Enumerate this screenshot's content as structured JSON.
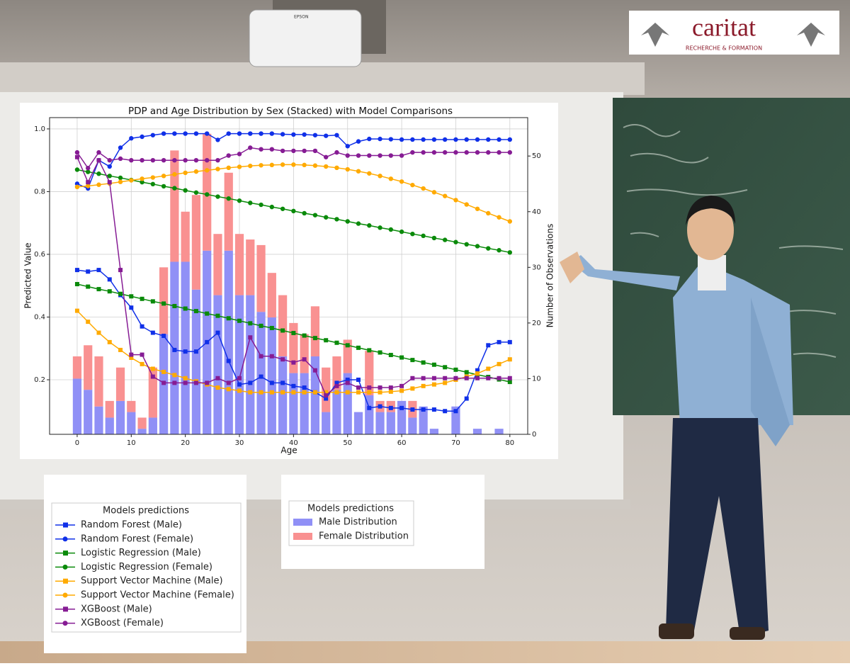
{
  "chart_data": {
    "type": "combo",
    "title": "PDP and Age Distribution by Sex (Stacked) with Model Comparisons",
    "xlabel": "Age",
    "ylabel": "Predicted Value",
    "y2label": "Number of Observations",
    "legend_title": "Models predictions",
    "x": [
      0,
      2,
      4,
      6,
      8,
      10,
      12,
      14,
      16,
      18,
      20,
      22,
      24,
      26,
      28,
      30,
      32,
      34,
      36,
      38,
      40,
      42,
      44,
      46,
      48,
      50,
      52,
      54,
      56,
      58,
      60,
      62,
      64,
      66,
      68,
      70,
      72,
      74,
      76,
      78,
      80
    ],
    "xlim": [
      -5.1,
      83.3
    ],
    "xticks": [
      0,
      10,
      20,
      30,
      40,
      50,
      60,
      70,
      80
    ],
    "ylim": [
      0.026,
      1.036
    ],
    "yticks": [
      0.2,
      0.4,
      0.6,
      0.8,
      {
        "value": 1.0,
        "label": "1.0"
      }
    ],
    "y2lim": [
      0,
      56.9
    ],
    "y2ticks": [
      0,
      10,
      20,
      30,
      40,
      50
    ],
    "grid": true,
    "series": [
      {
        "name": "Male Distribution",
        "type": "bar",
        "axis": "y2",
        "color": "#9090f6",
        "values": [
          10,
          8,
          5,
          3,
          6,
          4,
          1,
          3,
          18,
          31,
          31,
          26,
          33,
          25,
          33,
          25,
          25,
          22,
          21,
          14,
          11,
          11,
          14,
          4,
          8,
          11,
          4,
          7,
          4,
          4,
          6,
          3,
          5,
          1,
          0,
          5,
          0,
          1,
          0,
          1,
          0
        ]
      },
      {
        "name": "Female Distribution",
        "type": "bar",
        "axis": "y2",
        "color": "#f99191",
        "values": [
          4,
          8,
          9,
          3,
          6,
          2,
          2,
          9,
          12,
          20,
          9,
          17,
          21,
          11,
          14,
          11,
          10,
          12,
          8,
          11,
          9,
          7,
          9,
          8,
          6,
          6,
          0,
          8,
          2,
          2,
          0,
          3,
          0,
          0,
          0,
          0,
          0,
          0,
          0,
          0,
          0
        ]
      },
      {
        "name": "Random Forest (Male)",
        "type": "line",
        "marker": "square",
        "color": "#1030e8",
        "values": [
          0.55,
          0.545,
          0.55,
          0.52,
          0.47,
          0.43,
          0.37,
          0.35,
          0.34,
          0.295,
          0.29,
          0.29,
          0.32,
          0.35,
          0.26,
          0.185,
          0.19,
          0.21,
          0.19,
          0.19,
          0.18,
          0.175,
          0.16,
          0.14,
          0.19,
          0.2,
          0.2,
          0.11,
          0.115,
          0.11,
          0.11,
          0.105,
          0.105,
          0.105,
          0.1,
          0.1,
          0.14,
          0.23,
          0.31,
          0.32,
          0.32
        ]
      },
      {
        "name": "Random Forest (Female)",
        "type": "line",
        "marker": "circle",
        "color": "#1030e8",
        "values": [
          0.825,
          0.81,
          0.9,
          0.88,
          0.94,
          0.97,
          0.975,
          0.98,
          0.985,
          0.985,
          0.985,
          0.985,
          0.985,
          0.965,
          0.985,
          0.985,
          0.985,
          0.985,
          0.985,
          0.983,
          0.982,
          0.982,
          0.98,
          0.978,
          0.98,
          0.945,
          0.96,
          0.968,
          0.968,
          0.967,
          0.966,
          0.966,
          0.966,
          0.966,
          0.966,
          0.966,
          0.966,
          0.966,
          0.966,
          0.966,
          0.966
        ]
      },
      {
        "name": "Logistic Regression (Male)",
        "type": "line",
        "marker": "square",
        "color": "#0a8a0a",
        "values": [
          0.505,
          0.497,
          0.489,
          0.482,
          0.474,
          0.466,
          0.458,
          0.45,
          0.443,
          0.435,
          0.427,
          0.419,
          0.411,
          0.404,
          0.396,
          0.388,
          0.38,
          0.372,
          0.365,
          0.357,
          0.349,
          0.341,
          0.333,
          0.326,
          0.318,
          0.31,
          0.302,
          0.294,
          0.287,
          0.279,
          0.271,
          0.263,
          0.255,
          0.248,
          0.24,
          0.232,
          0.224,
          0.216,
          0.209,
          0.201,
          0.193
        ]
      },
      {
        "name": "Logistic Regression (Female)",
        "type": "line",
        "marker": "circle",
        "color": "#0a8a0a",
        "values": [
          0.87,
          0.863,
          0.857,
          0.85,
          0.844,
          0.837,
          0.83,
          0.824,
          0.817,
          0.811,
          0.804,
          0.797,
          0.791,
          0.784,
          0.778,
          0.771,
          0.764,
          0.758,
          0.751,
          0.745,
          0.738,
          0.731,
          0.725,
          0.718,
          0.712,
          0.705,
          0.698,
          0.692,
          0.685,
          0.679,
          0.672,
          0.665,
          0.659,
          0.652,
          0.646,
          0.639,
          0.632,
          0.626,
          0.619,
          0.613,
          0.606
        ]
      },
      {
        "name": "Support Vector Machine (Male)",
        "type": "line",
        "marker": "square",
        "color": "#ffaa00",
        "values": [
          0.42,
          0.385,
          0.35,
          0.32,
          0.295,
          0.27,
          0.25,
          0.235,
          0.225,
          0.215,
          0.205,
          0.195,
          0.185,
          0.175,
          0.17,
          0.165,
          0.16,
          0.16,
          0.16,
          0.16,
          0.16,
          0.16,
          0.16,
          0.16,
          0.16,
          0.16,
          0.16,
          0.16,
          0.16,
          0.162,
          0.165,
          0.172,
          0.18,
          0.185,
          0.19,
          0.2,
          0.21,
          0.22,
          0.235,
          0.25,
          0.265
        ]
      },
      {
        "name": "Support Vector Machine (Female)",
        "type": "line",
        "marker": "circle",
        "color": "#ffaa00",
        "values": [
          0.815,
          0.818,
          0.822,
          0.826,
          0.831,
          0.836,
          0.841,
          0.845,
          0.85,
          0.855,
          0.86,
          0.864,
          0.868,
          0.872,
          0.876,
          0.879,
          0.882,
          0.884,
          0.885,
          0.886,
          0.886,
          0.885,
          0.883,
          0.88,
          0.876,
          0.871,
          0.865,
          0.858,
          0.85,
          0.841,
          0.832,
          0.821,
          0.81,
          0.798,
          0.786,
          0.773,
          0.759,
          0.745,
          0.731,
          0.718,
          0.705
        ]
      },
      {
        "name": "XGBoost (Male)",
        "type": "line",
        "marker": "square",
        "color": "#861c94",
        "values": [
          0.91,
          0.83,
          0.9,
          0.83,
          0.55,
          0.28,
          0.28,
          0.21,
          0.19,
          0.19,
          0.19,
          0.19,
          0.19,
          0.205,
          0.19,
          0.205,
          0.335,
          0.275,
          0.275,
          0.265,
          0.255,
          0.265,
          0.23,
          0.15,
          0.18,
          0.19,
          0.175,
          0.175,
          0.175,
          0.175,
          0.18,
          0.205,
          0.205,
          0.205,
          0.205,
          0.205,
          0.205,
          0.205,
          0.205,
          0.205,
          0.205
        ]
      },
      {
        "name": "XGBoost (Female)",
        "type": "line",
        "marker": "circle",
        "color": "#861c94",
        "values": [
          0.925,
          0.875,
          0.925,
          0.9,
          0.905,
          0.9,
          0.9,
          0.9,
          0.9,
          0.9,
          0.9,
          0.9,
          0.9,
          0.9,
          0.915,
          0.92,
          0.94,
          0.935,
          0.935,
          0.93,
          0.93,
          0.93,
          0.93,
          0.91,
          0.925,
          0.915,
          0.915,
          0.915,
          0.915,
          0.915,
          0.915,
          0.925,
          0.925,
          0.925,
          0.925,
          0.925,
          0.925,
          0.925,
          0.925,
          0.925,
          0.925
        ]
      }
    ]
  },
  "logo": {
    "name": "caritat",
    "tagline": "RECHERCHE & FORMATION"
  },
  "projector": {
    "brand": "EPSON"
  }
}
